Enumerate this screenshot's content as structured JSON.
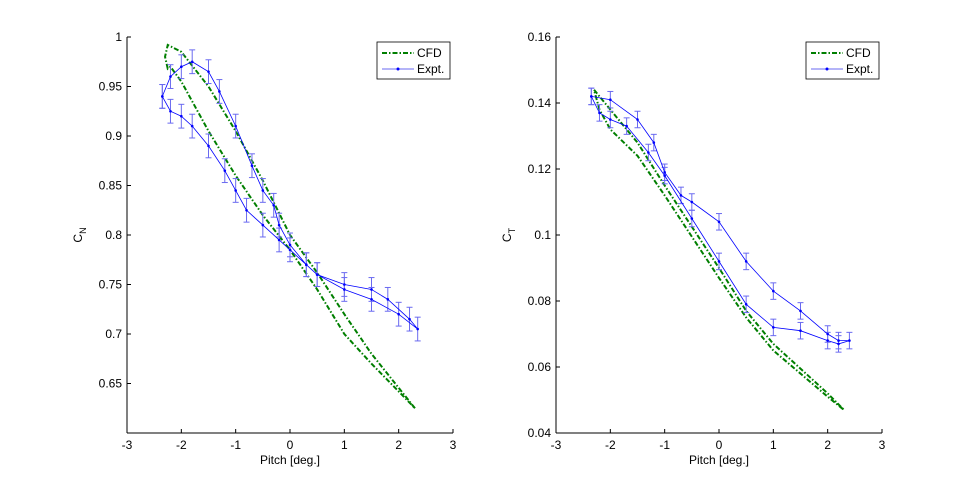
{
  "chart_data": [
    {
      "type": "line",
      "xlabel": "Pitch [deg.]",
      "ylabel_main": "C",
      "ylabel_sub": "N",
      "xlim": [
        -3,
        3
      ],
      "ylim": [
        0.6,
        1
      ],
      "xticks": [
        "-3",
        "-2",
        "-1",
        "0",
        "1",
        "2",
        "3"
      ],
      "xtick_values": [
        -3,
        -2,
        -1,
        0,
        1,
        2,
        3
      ],
      "yticks": [
        "0.65",
        "0.7",
        "0.75",
        "0.8",
        "0.85",
        "0.9",
        "0.95",
        "1"
      ],
      "ytick_values": [
        0.65,
        0.7,
        0.75,
        0.8,
        0.85,
        0.9,
        0.95,
        1
      ],
      "legend": {
        "placement": "top-right",
        "entries": [
          "CFD",
          "Expt."
        ]
      },
      "series": [
        {
          "name": "CFD",
          "color": "#007f00",
          "style": "dashdot",
          "x": [
            2.3,
            1.5,
            1,
            0.5,
            0,
            -0.5,
            -1,
            -1.5,
            -2,
            -2.25,
            -2.3,
            -2.25,
            -2.2,
            -2,
            -1.5,
            -1,
            -0.5,
            0,
            0.5,
            1,
            1.5,
            2,
            2.3
          ],
          "y": [
            0.625,
            0.68,
            0.72,
            0.762,
            0.8,
            0.855,
            0.905,
            0.95,
            0.985,
            0.992,
            0.98,
            0.968,
            0.97,
            0.955,
            0.905,
            0.86,
            0.82,
            0.785,
            0.745,
            0.7,
            0.67,
            0.642,
            0.625
          ]
        },
        {
          "name": "Expt.",
          "color": "#0000ff",
          "style": "errorbar",
          "error": 0.012,
          "x": [
            -2.35,
            -2.2,
            -2,
            -1.8,
            -1.5,
            -1.3,
            -1,
            -0.7,
            -0.5,
            -0.3,
            -0.2,
            0,
            0.3,
            0.5,
            1,
            1.5,
            2,
            2.35,
            2.2,
            1.8,
            1.5,
            1,
            0.5,
            0.3,
            0,
            -0.2,
            -0.5,
            -0.8,
            -1,
            -1.2,
            -1.5,
            -1.8,
            -2,
            -2.2,
            -2.35
          ],
          "y": [
            0.94,
            0.96,
            0.97,
            0.975,
            0.965,
            0.945,
            0.91,
            0.87,
            0.845,
            0.83,
            0.81,
            0.79,
            0.77,
            0.76,
            0.745,
            0.735,
            0.72,
            0.705,
            0.715,
            0.735,
            0.745,
            0.75,
            0.76,
            0.77,
            0.785,
            0.795,
            0.81,
            0.825,
            0.845,
            0.865,
            0.89,
            0.91,
            0.92,
            0.925,
            0.94
          ]
        }
      ]
    },
    {
      "type": "line",
      "xlabel": "Pitch [deg.]",
      "ylabel_main": "C",
      "ylabel_sub": "T",
      "xlim": [
        -3,
        3
      ],
      "ylim": [
        0.04,
        0.16
      ],
      "xticks": [
        "-3",
        "-2",
        "-1",
        "0",
        "1",
        "2",
        "3"
      ],
      "xtick_values": [
        -3,
        -2,
        -1,
        0,
        1,
        2,
        3
      ],
      "yticks": [
        "0.04",
        "0.06",
        "0.08",
        "0.1",
        "0.12",
        "0.14",
        "0.16"
      ],
      "ytick_values": [
        0.04,
        0.06,
        0.08,
        0.1,
        0.12,
        0.14,
        0.16
      ],
      "legend": {
        "placement": "top-right",
        "entries": [
          "CFD",
          "Expt."
        ]
      },
      "series": [
        {
          "name": "CFD",
          "color": "#007f00",
          "style": "dashdot",
          "x": [
            -2.3,
            -1.5,
            -1,
            0,
            0.5,
            1,
            2,
            2.3,
            2,
            1,
            0.5,
            0,
            -1,
            -1.5,
            -2,
            -2.2,
            -2.3
          ],
          "y": [
            0.144,
            0.128,
            0.115,
            0.09,
            0.077,
            0.067,
            0.052,
            0.047,
            0.051,
            0.065,
            0.075,
            0.087,
            0.112,
            0.124,
            0.132,
            0.138,
            0.144
          ]
        },
        {
          "name": "Expt.",
          "color": "#0000ff",
          "style": "errorbar",
          "error": 0.0025,
          "x": [
            -2.35,
            -2,
            -1.5,
            -1.2,
            -1,
            -0.7,
            -0.5,
            0,
            0.5,
            1,
            1.5,
            2,
            2.2,
            2.4,
            2.2,
            2,
            1.5,
            1,
            0.5,
            0,
            -0.5,
            -1,
            -1.3,
            -1.7,
            -2,
            -2.2,
            -2.35
          ],
          "y": [
            0.142,
            0.141,
            0.135,
            0.128,
            0.119,
            0.112,
            0.11,
            0.104,
            0.092,
            0.083,
            0.077,
            0.07,
            0.068,
            0.068,
            0.067,
            0.068,
            0.071,
            0.072,
            0.079,
            0.092,
            0.105,
            0.118,
            0.125,
            0.133,
            0.135,
            0.137,
            0.142
          ]
        }
      ]
    }
  ]
}
